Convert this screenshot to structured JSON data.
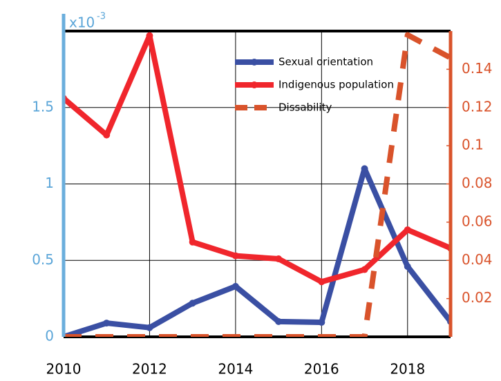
{
  "chart_data": {
    "type": "line",
    "multiplier": {
      "base": "x10",
      "exponent": "-3"
    },
    "x": [
      2010,
      2011,
      2012,
      2013,
      2014,
      2015,
      2016,
      2017,
      2018,
      2019
    ],
    "xlim": [
      2010,
      2019
    ],
    "xticks": [
      2010,
      2012,
      2014,
      2016,
      2018
    ],
    "ylim": [
      0,
      2
    ],
    "yticks": [
      0,
      0.5,
      1,
      1.5
    ],
    "y2lim": [
      0,
      0.16
    ],
    "y2ticks": [
      0.02,
      0.04,
      0.06,
      0.08,
      0.1,
      0.12,
      0.14
    ],
    "grid": true,
    "legend": "upper right",
    "series": [
      {
        "name": "Sexual orientation",
        "color": "#3a4fa3",
        "dash": false,
        "values": [
          0,
          0.09,
          0.06,
          0.22,
          0.33,
          0.1,
          0.095,
          1.1,
          0.46,
          0.1
        ]
      },
      {
        "name": "Indigenous population",
        "color": "#f0262c",
        "dash": false,
        "values": [
          1.56,
          1.32,
          1.97,
          0.62,
          0.53,
          0.51,
          0.36,
          0.44,
          0.7,
          0.58
        ]
      },
      {
        "name": "Dissability",
        "color": "#d9532b",
        "dash": true,
        "axis": "y2",
        "values": [
          0,
          0,
          0,
          0,
          0,
          0,
          0,
          0,
          0.158,
          0.146
        ]
      }
    ]
  }
}
